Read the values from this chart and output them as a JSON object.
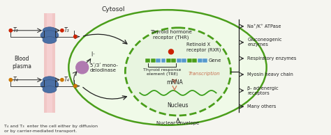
{
  "bg_color": "#f5f5f0",
  "cytosol_label": "Cytosol",
  "blood_plasma_label": "Blood\nplasma",
  "cell_membrane_color": "#f0b8b8",
  "t3_label": "T₃",
  "t4_label": "T₄",
  "monodeiodinase_label": "5ʹ/3ʹ mono-\ndeiodinase",
  "iodine_label": "I⁻",
  "thr_label": "Thyroid hormone\nreceptor (THR)",
  "rxr_label": "Retinoid X\nreceptor (RXR)",
  "gene_label": "Gene",
  "tre_label": "Thyroid response\nelement (TRE)",
  "transcription_label": "Transcription",
  "mrna_label": "mRNA",
  "nucleus_label": "Nucleus",
  "nuclear_envelope_label": "Nuclear envelope",
  "outputs": [
    "Na⁺/K⁺ ATPase",
    "Gluconeogenic\nenzymes",
    "Respiratory enzymes",
    "Myosin heavy chain",
    "β- adrenergic\nreceptors",
    "Many others"
  ],
  "arrow_color": "#222222",
  "red_dot_color": "#cc2200",
  "orange_dot_color": "#cc7700",
  "purple_dot_color": "#b07ab0",
  "salmon_arrow_color": "#d08060",
  "green_wave_color": "#3a9e1a",
  "nucleus_fill": "#e8f5e0",
  "nucleus_border": "#4a9e1a",
  "outer_fill": "#f0fae8",
  "outer_border": "#4a9e1a",
  "prot_color": "#4a6fa5",
  "caption": "T₄ and T₃  enter the cell either by diffusion\nor by carrier-mediated transport."
}
